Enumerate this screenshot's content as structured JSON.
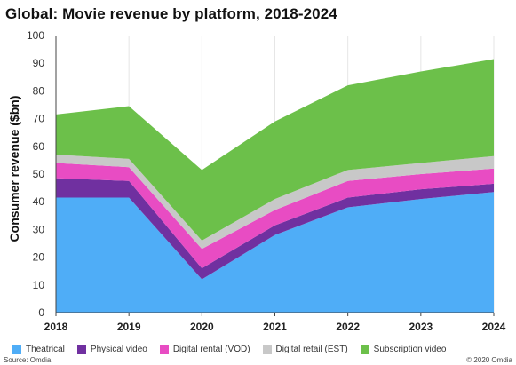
{
  "chart_data": {
    "type": "area",
    "title": "Global: Movie revenue by platform, 2018-2024",
    "ylabel": "Consumer revenue ($bn)",
    "xlabel": "",
    "categories": [
      "2018",
      "2019",
      "2020",
      "2021",
      "2022",
      "2023",
      "2024"
    ],
    "yticks": [
      "0",
      "10",
      "20",
      "30",
      "40",
      "50",
      "60",
      "70",
      "80",
      "90",
      "100"
    ],
    "ylim": [
      0,
      100
    ],
    "stacked": true,
    "series": [
      {
        "name": "Theatrical",
        "color": "#4FADF7",
        "values": [
          41.5,
          41.5,
          12,
          28,
          38,
          41,
          43.5
        ]
      },
      {
        "name": "Physical video",
        "color": "#7030A0",
        "values": [
          7,
          6,
          4,
          3.5,
          3.5,
          3.5,
          3
        ]
      },
      {
        "name": "Digital rental (VOD)",
        "color": "#E84CC3",
        "values": [
          5.5,
          5,
          7,
          5.5,
          6,
          5.5,
          5.5
        ]
      },
      {
        "name": "Digital retail (EST)",
        "color": "#C8C8C8",
        "values": [
          3,
          3,
          3,
          4,
          4,
          4,
          4.5
        ]
      },
      {
        "name": "Subscription video",
        "color": "#6CC04A",
        "values": [
          14.5,
          19,
          25.5,
          28,
          30.5,
          33,
          35
        ]
      }
    ],
    "grid": "vertical",
    "legend": "bottom"
  },
  "footer": {
    "source": "Source: Omdia",
    "copyright": "© 2020 Omdia"
  }
}
